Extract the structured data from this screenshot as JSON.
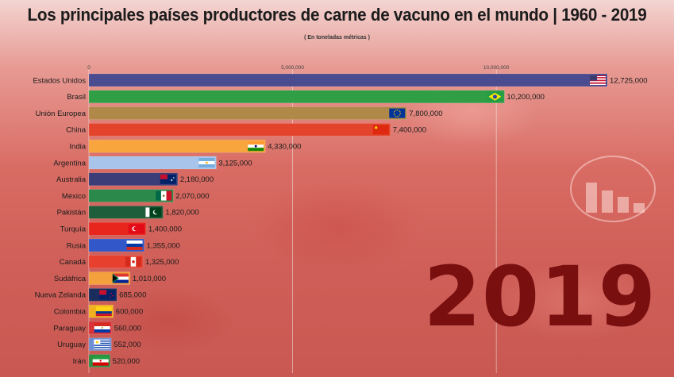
{
  "title": "Los principales países productores de carne de vacuno en el mundo | 1960 - 2019",
  "subtitle": "( En toneladas métricas )",
  "year": "2019",
  "colors": {
    "year": "#7a0f10",
    "grid": "#ffffff"
  },
  "chart_data": {
    "type": "bar",
    "orientation": "horizontal",
    "xlim": [
      0,
      12725000
    ],
    "ticks": [
      0,
      5000000,
      10000000
    ],
    "tick_labels": [
      "0",
      "5,000,000",
      "10,000,000"
    ],
    "categories": [
      "Estados Unidos",
      "Brasil",
      "Unión Europea",
      "China",
      "India",
      "Argentina",
      "Australia",
      "México",
      "Pakistán",
      "Turquía",
      "Rusia",
      "Canadá",
      "Sudáfrica",
      "Nueva Zelanda",
      "Colombia",
      "Paraguay",
      "Uruguay",
      "Irán"
    ],
    "values": [
      12725000,
      10200000,
      7800000,
      7400000,
      4330000,
      3125000,
      2180000,
      2070000,
      1820000,
      1400000,
      1355000,
      1325000,
      1010000,
      685000,
      600000,
      560000,
      552000,
      520000
    ],
    "value_labels": [
      "12,725,000",
      "10,200,000",
      "7,800,000",
      "7,400,000",
      "4,330,000",
      "3,125,000",
      "2,180,000",
      "2,070,000",
      "1,820,000",
      "1,400,000",
      "1,355,000",
      "1,325,000",
      "1,010,000",
      "685,000",
      "600,000",
      "560,000",
      "552,000",
      "520,000"
    ],
    "bar_colors": [
      "#4b4b8f",
      "#2f9e44",
      "#b08848",
      "#e3442b",
      "#f7a53c",
      "#a8c4ea",
      "#3a3d78",
      "#2b8a4b",
      "#1f5e3a",
      "#e8261d",
      "#3157c8",
      "#e8402f",
      "#f3a03d",
      "#1b2d5c",
      "#f0b020",
      "#d9333a",
      "#6e8fd1",
      "#2c8f43"
    ],
    "flags": [
      "us",
      "br",
      "eu",
      "cn",
      "in",
      "ar",
      "au",
      "mx",
      "pk",
      "tr",
      "ru",
      "ca",
      "za",
      "nz",
      "co",
      "py",
      "uy",
      "ir"
    ]
  }
}
